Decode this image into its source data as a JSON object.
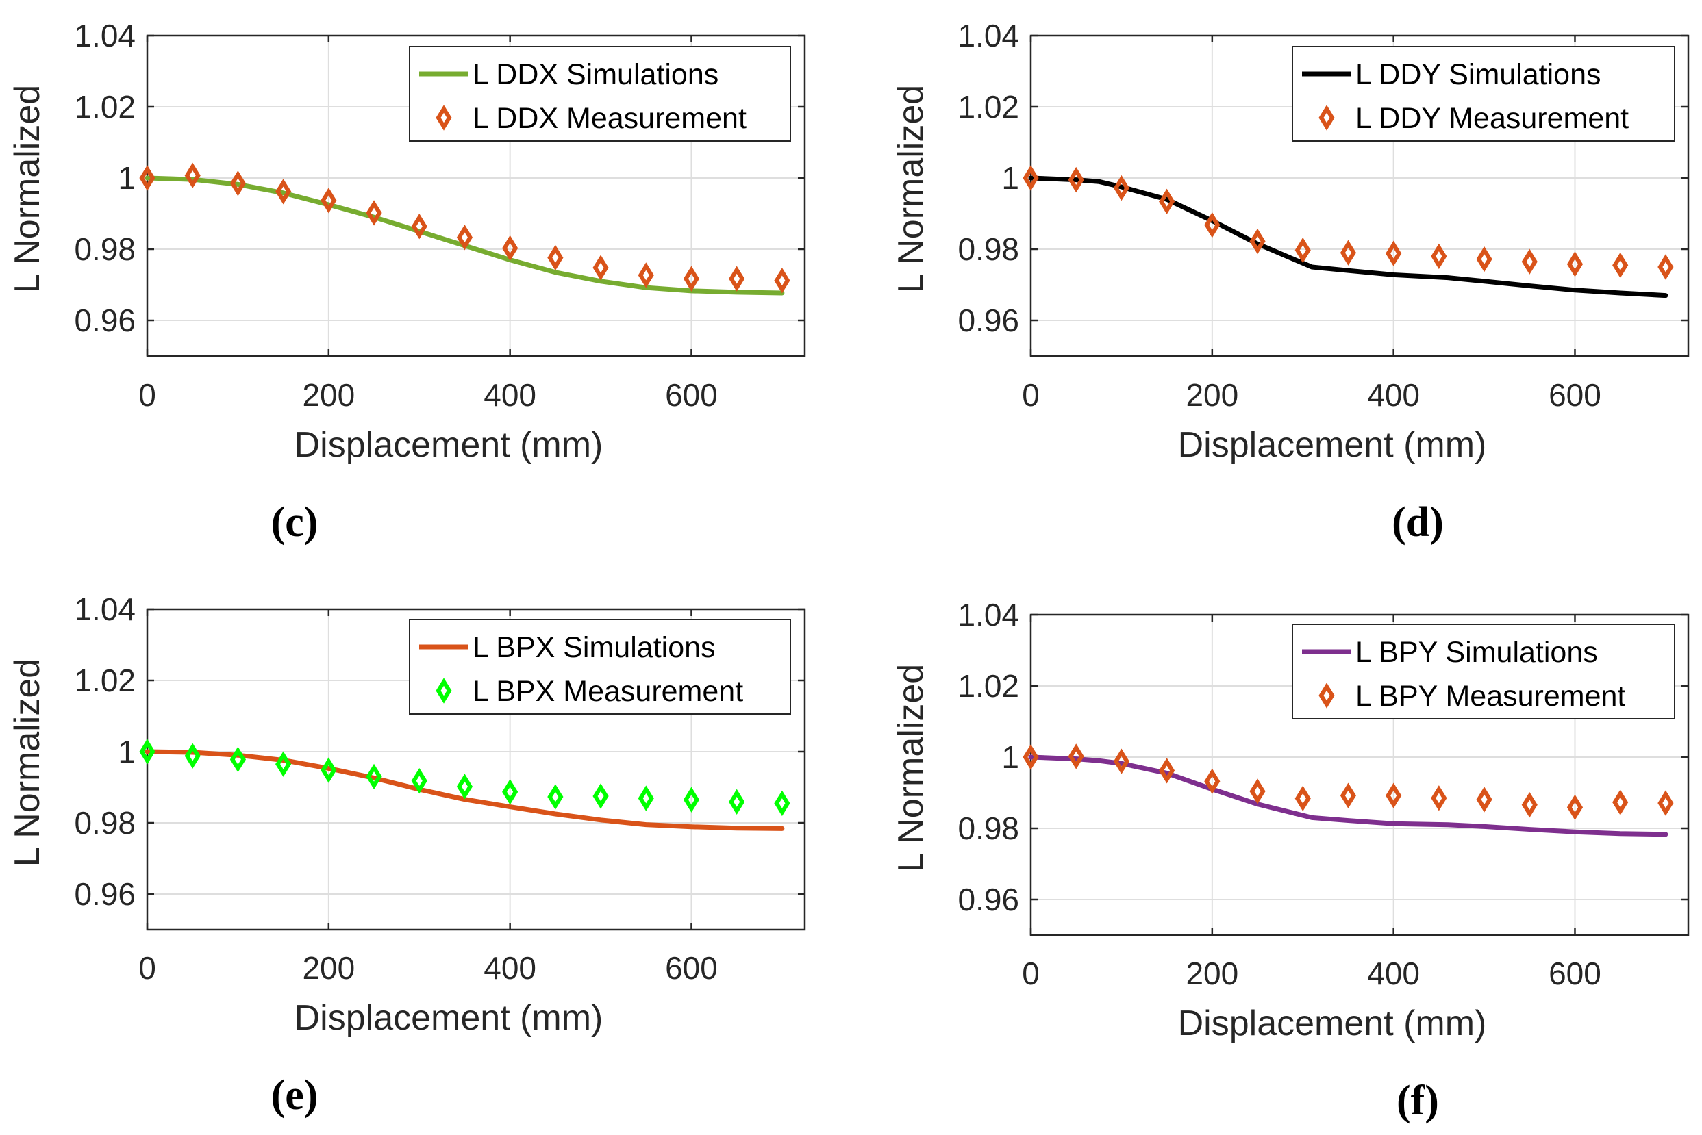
{
  "chart_data": [
    {
      "type": "line",
      "panel_label": "(c)",
      "xlabel": "Displacement (mm)",
      "ylabel": "L Normalized",
      "xlim": [
        0,
        725
      ],
      "ylim": [
        0.95,
        1.04
      ],
      "xticks": [
        0,
        200,
        400,
        600
      ],
      "yticks": [
        0.96,
        0.98,
        1,
        1.02,
        1.04
      ],
      "ytick_labels": [
        "0.96",
        "0.98",
        "1",
        "1.02",
        "1.04"
      ],
      "grid": true,
      "legend_position": "top-right",
      "series": [
        {
          "name": "L DDX Simulations",
          "kind": "line",
          "color": "#77ac30",
          "x": [
            0,
            50,
            100,
            150,
            200,
            250,
            300,
            350,
            400,
            450,
            500,
            550,
            600,
            650,
            700
          ],
          "y": [
            1.0,
            0.9996,
            0.9982,
            0.9958,
            0.9925,
            0.989,
            0.985,
            0.981,
            0.977,
            0.9735,
            0.971,
            0.9692,
            0.9683,
            0.9679,
            0.9677
          ]
        },
        {
          "name": "L DDX Measurement",
          "kind": "marker",
          "color": "#d95319",
          "x": [
            0,
            50,
            100,
            150,
            200,
            250,
            300,
            350,
            400,
            450,
            500,
            550,
            600,
            650,
            700
          ],
          "y": [
            1.0,
            1.0007,
            0.9985,
            0.9962,
            0.9937,
            0.9902,
            0.9864,
            0.9833,
            0.9803,
            0.9776,
            0.9748,
            0.9727,
            0.9717,
            0.9717,
            0.9712
          ]
        }
      ]
    },
    {
      "type": "line",
      "panel_label": "(d)",
      "xlabel": "Displacement (mm)",
      "ylabel": "L Normalized",
      "xlim": [
        0,
        725
      ],
      "ylim": [
        0.95,
        1.04
      ],
      "xticks": [
        0,
        200,
        400,
        600
      ],
      "yticks": [
        0.96,
        0.98,
        1,
        1.02,
        1.04
      ],
      "ytick_labels": [
        "0.96",
        "0.98",
        "1",
        "1.02",
        "1.04"
      ],
      "grid": true,
      "legend_position": "top-right",
      "series": [
        {
          "name": "L DDY Simulations",
          "kind": "line",
          "color": "#000000",
          "x": [
            0,
            50,
            75,
            100,
            150,
            200,
            250,
            310,
            350,
            400,
            460,
            500,
            550,
            600,
            650,
            700
          ],
          "y": [
            1.0,
            0.9995,
            0.999,
            0.9975,
            0.994,
            0.988,
            0.9815,
            0.975,
            0.974,
            0.9728,
            0.972,
            0.971,
            0.9697,
            0.9685,
            0.9677,
            0.967
          ]
        },
        {
          "name": "L DDY Measurement",
          "kind": "marker",
          "color": "#d95319",
          "x": [
            0,
            50,
            100,
            150,
            200,
            250,
            300,
            350,
            400,
            450,
            500,
            550,
            600,
            650,
            700
          ],
          "y": [
            1.0,
            0.9995,
            0.9972,
            0.9934,
            0.9868,
            0.9822,
            0.9797,
            0.979,
            0.9788,
            0.978,
            0.9772,
            0.9765,
            0.9758,
            0.9755,
            0.975
          ]
        }
      ]
    },
    {
      "type": "line",
      "panel_label": "(e)",
      "xlabel": "Displacement (mm)",
      "ylabel": "L Normalized",
      "xlim": [
        0,
        725
      ],
      "ylim": [
        0.95,
        1.04
      ],
      "xticks": [
        0,
        200,
        400,
        600
      ],
      "yticks": [
        0.96,
        0.98,
        1,
        1.02,
        1.04
      ],
      "ytick_labels": [
        "0.96",
        "0.98",
        "1",
        "1.02",
        "1.04"
      ],
      "grid": true,
      "legend_position": "top-right",
      "series": [
        {
          "name": "L BPX Simulations",
          "kind": "line",
          "color": "#d95319",
          "x": [
            0,
            50,
            100,
            150,
            200,
            250,
            300,
            350,
            400,
            450,
            500,
            550,
            600,
            650,
            700
          ],
          "y": [
            1.0,
            0.9998,
            0.999,
            0.9976,
            0.9953,
            0.9926,
            0.9894,
            0.9866,
            0.9845,
            0.9825,
            0.9808,
            0.9795,
            0.9789,
            0.9785,
            0.9784
          ]
        },
        {
          "name": "L BPX Measurement",
          "kind": "marker",
          "color": "#00ff00",
          "x": [
            0,
            50,
            100,
            150,
            200,
            250,
            300,
            350,
            400,
            450,
            500,
            550,
            600,
            650,
            700
          ],
          "y": [
            1.0,
            0.9988,
            0.9978,
            0.9965,
            0.9948,
            0.993,
            0.9918,
            0.9902,
            0.9887,
            0.9873,
            0.9875,
            0.9869,
            0.9865,
            0.9859,
            0.9855
          ]
        }
      ]
    },
    {
      "type": "line",
      "panel_label": "(f)",
      "xlabel": "Displacement (mm)",
      "ylabel": "L Normalized",
      "xlim": [
        0,
        725
      ],
      "ylim": [
        0.95,
        1.04
      ],
      "xticks": [
        0,
        200,
        400,
        600
      ],
      "yticks": [
        0.96,
        0.98,
        1,
        1.02,
        1.04
      ],
      "ytick_labels": [
        "0.96",
        "0.98",
        "1",
        "1.02",
        "1.04"
      ],
      "grid": true,
      "legend_position": "top-right",
      "series": [
        {
          "name": "L BPY Simulations",
          "kind": "line",
          "color": "#7e2f8e",
          "x": [
            0,
            50,
            75,
            100,
            150,
            200,
            250,
            310,
            350,
            400,
            460,
            500,
            550,
            600,
            650,
            700
          ],
          "y": [
            1.0,
            0.9995,
            0.999,
            0.9982,
            0.9955,
            0.991,
            0.9868,
            0.983,
            0.9822,
            0.9813,
            0.981,
            0.9805,
            0.9797,
            0.979,
            0.9785,
            0.9783
          ]
        },
        {
          "name": "L BPY Measurement",
          "kind": "marker",
          "color": "#d95319",
          "x": [
            0,
            50,
            100,
            150,
            200,
            250,
            300,
            350,
            400,
            450,
            500,
            550,
            600,
            650,
            700
          ],
          "y": [
            1.0,
            1.0002,
            0.9988,
            0.9962,
            0.9932,
            0.9904,
            0.9884,
            0.9892,
            0.9892,
            0.9885,
            0.9881,
            0.9866,
            0.9859,
            0.9873,
            0.9871
          ]
        }
      ]
    }
  ]
}
